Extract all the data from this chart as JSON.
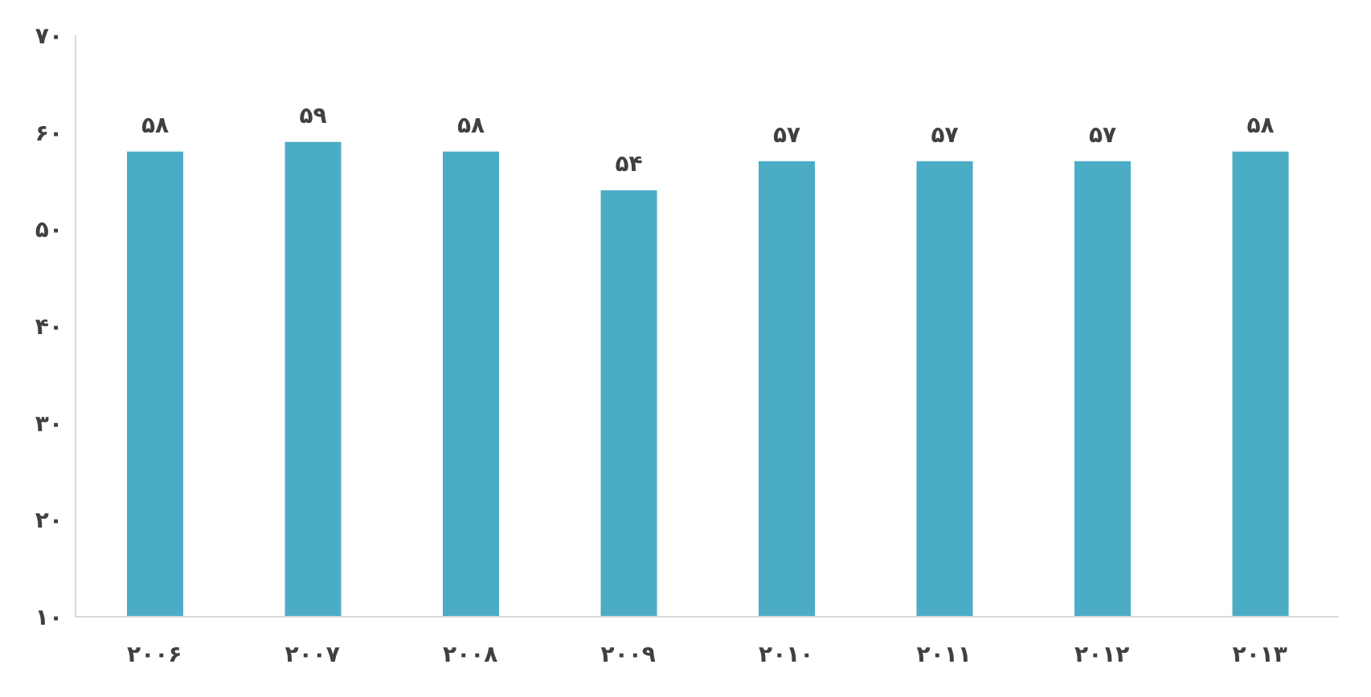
{
  "chart_data": {
    "type": "bar",
    "categories": [
      "۲۰۰۶",
      "۲۰۰۷",
      "۲۰۰۸",
      "۲۰۰۹",
      "۲۰۱۰",
      "۲۰۱۱",
      "۲۰۱۲",
      "۲۰۱۳"
    ],
    "values": [
      58,
      59,
      58,
      54,
      57,
      57,
      57,
      58
    ],
    "value_labels": [
      "۵۸",
      "۵۹",
      "۵۸",
      "۵۴",
      "۵۷",
      "۵۷",
      "۵۷",
      "۵۸"
    ],
    "color": "#4bacc6",
    "ylim": [
      10,
      70
    ],
    "yticks": [
      {
        "value": 10,
        "label": "۱۰"
      },
      {
        "value": 20,
        "label": "۲۰"
      },
      {
        "value": 30,
        "label": "۳۰"
      },
      {
        "value": 40,
        "label": "۴۰"
      },
      {
        "value": 50,
        "label": "۵۰"
      },
      {
        "value": 60,
        "label": "۶۰"
      },
      {
        "value": 70,
        "label": "۷۰"
      }
    ],
    "grid": false,
    "legend": false
  }
}
